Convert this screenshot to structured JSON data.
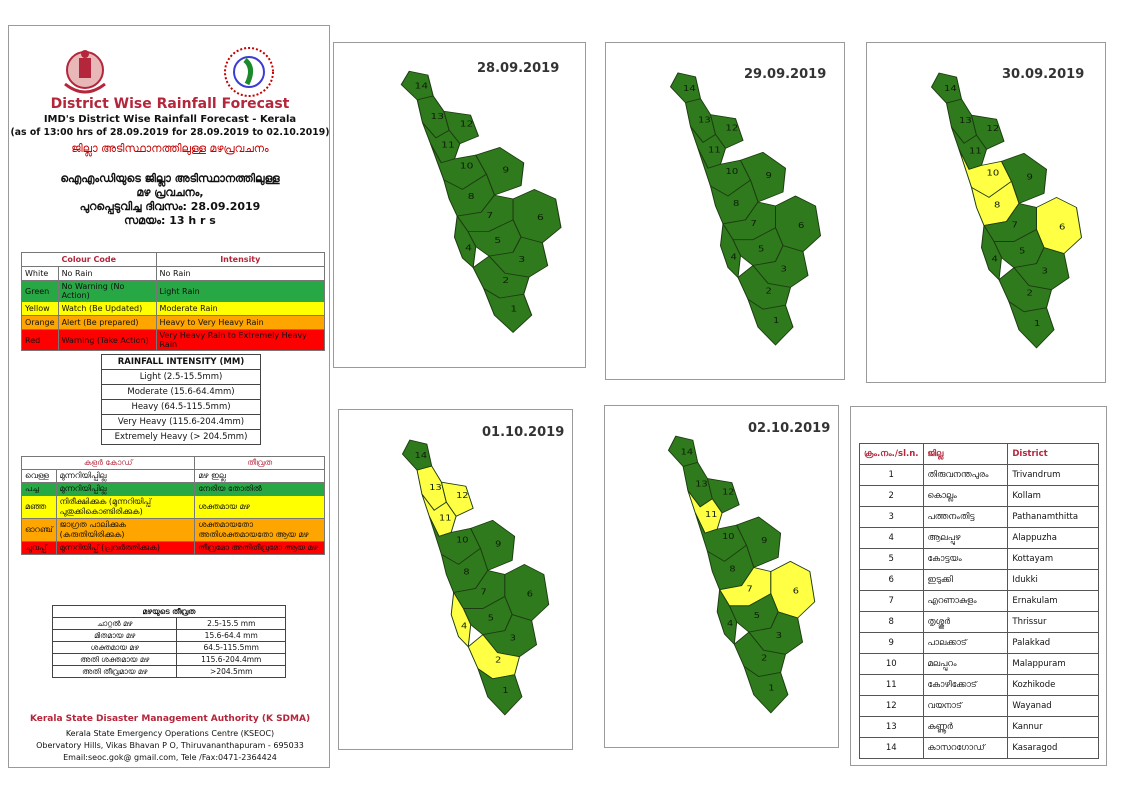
{
  "header": {
    "title": "District Wise Rainfall Forecast",
    "subtitle": "IMD's District Wise Rainfall Forecast - Kerala",
    "as_of": "(as of 13:00 hrs of 28.09.2019  for 28.09.2019  to 02.10.2019)",
    "ml_title": "ജില്ലാ അടിസ്ഥാനത്തിലുള്ള മഴപ്രവചനം",
    "ml_line1": "ഐഎംഡിയുടെ ജില്ലാ  അടിസ്ഥാനത്തിലുള്ള",
    "ml_line2": "മഴ പ്രവചനം,",
    "ml_line3": "പുറപ്പെടുവിച്ച  ദിവസം: 28.09.2019",
    "ml_line4": "സമയം: 13 h r s"
  },
  "colour_code": {
    "header_code": "Colour Code",
    "header_intensity": "Intensity",
    "rows": [
      {
        "name": "White",
        "code": "No Rain",
        "intensity": "No Rain",
        "color": "#ffffff"
      },
      {
        "name": "Green",
        "code": "No Warning (No Action)",
        "intensity": "Light Rain",
        "color": "#28a745"
      },
      {
        "name": "Yellow",
        "code": "Watch (Be Updated)",
        "intensity": "Moderate Rain",
        "color": "#ffff00"
      },
      {
        "name": "Orange",
        "code": "Alert (Be prepared)",
        "intensity": "Heavy to Very Heavy Rain",
        "color": "#ffa500"
      },
      {
        "name": "Red",
        "code": "Warning (Take Action)",
        "intensity": "Very Heavy Rain to Extremely Heavy Rain",
        "color": "#ff0000"
      }
    ]
  },
  "rainfall_intensity": {
    "header": "RAINFALL INTENSITY (MM)",
    "rows": [
      "Light (2.5-15.5mm)",
      "Moderate (15.6-64.4mm)",
      "Heavy (64.5-115.5mm)",
      "Very Heavy (115.6-204.4mm)",
      "Extremely Heavy (> 204.5mm)"
    ]
  },
  "ml_colour_code": {
    "header_code": "കളർ കോഡ്",
    "header_intensity": "തീവ്രത",
    "rows": [
      {
        "name": "വെള്ള",
        "code": "മുന്നറിയിപ്പില്ല",
        "intensity": "മഴ ഇല്ല",
        "color": "#ffffff"
      },
      {
        "name": "പച്ച",
        "code": "മുന്നറിയിപ്പില്ല",
        "intensity": "നേരിയ തോതിൽ",
        "color": "#28a745"
      },
      {
        "name": "മഞ്ഞ",
        "code": "നിരീക്ഷിക്കുക (മുന്നറിയിപ്പ് പുതുക്കികൊണ്ടിരിക്കുക)",
        "intensity": "ശക്തമായ മഴ",
        "color": "#ffff00"
      },
      {
        "name": "ഓറഞ്ച്",
        "code": "ജാഗ്രത പാലിക്കുക (കരുതിയിരിക്കുക)",
        "intensity": "ശക്തമായതോ അതിശക്തമായതോ ആയ മഴ",
        "color": "#ffa500"
      },
      {
        "name": "ചുവപ്പ്",
        "code": "മുന്നറിയിപ്പ് (പ്രവർത്തിക്കുക)",
        "intensity": "തീവ്രമോ അതിതീവ്രമോ ആയ മഴ",
        "color": "#ff0000"
      }
    ]
  },
  "ml_intensity": {
    "header": "മഴയുടെ തീവ്രത",
    "rows": [
      {
        "label": "ചാറ്റൽ മഴ",
        "range": "2.5-15.5 mm"
      },
      {
        "label": "മിതമായ മഴ",
        "range": "15.6-64.4 mm"
      },
      {
        "label": "ശക്തമായ മഴ",
        "range": "64.5-115.5mm"
      },
      {
        "label": "അതി ശക്തമായ മഴ",
        "range": "115.6-204.4mm"
      },
      {
        "label": "അതി തീവ്രമായ മഴ",
        "range": ">204.5mm"
      }
    ]
  },
  "footer": {
    "org": "Kerala State Disaster Management Authority (K SDMA)",
    "line1": "Kerala State Emergency Operations Centre (KSEOC)",
    "line2": "Obervatory Hills, Vikas Bhavan P O, Thiruvananthapuram - 695033",
    "line3": "Email:seoc.gok@ gmail.com, Tele /Fax:0471-2364424"
  },
  "maps": [
    {
      "date": "28.09.2019",
      "yellow": []
    },
    {
      "date": "29.09.2019",
      "yellow": []
    },
    {
      "date": "30.09.2019",
      "yellow": [
        6,
        8,
        10
      ]
    },
    {
      "date": "01.10.2019",
      "yellow": [
        2,
        4,
        11,
        12,
        13
      ]
    },
    {
      "date": "02.10.2019",
      "yellow": [
        6,
        7,
        11
      ]
    }
  ],
  "colors": {
    "green": "#2f7a1c",
    "yellow": "#ffff44",
    "outline": "#1d3b12"
  },
  "districts": {
    "headers": [
      "ക്രം.നം./sl.n.",
      "ജില്ല",
      "District"
    ],
    "rows": [
      {
        "no": "1",
        "ml": "തിരുവനന്തപുരം",
        "en": "Trivandrum"
      },
      {
        "no": "2",
        "ml": "കൊല്ലം",
        "en": "Kollam"
      },
      {
        "no": "3",
        "ml": "പത്തനംതിട്ട",
        "en": "Pathanamthitta"
      },
      {
        "no": "4",
        "ml": "ആലപ്പുഴ",
        "en": "Alappuzha"
      },
      {
        "no": "5",
        "ml": "കോട്ടയം",
        "en": "Kottayam"
      },
      {
        "no": "6",
        "ml": "ഇടുക്കി",
        "en": "Idukki"
      },
      {
        "no": "7",
        "ml": "എറണാകുളം",
        "en": "Ernakulam"
      },
      {
        "no": "8",
        "ml": "തൃശ്ശൂർ",
        "en": "Thrissur"
      },
      {
        "no": "9",
        "ml": "പാലക്കാട്",
        "en": "Palakkad"
      },
      {
        "no": "10",
        "ml": "മലപ്പുറം",
        "en": "Malappuram"
      },
      {
        "no": "11",
        "ml": "കോഴിക്കോട്",
        "en": "Kozhikode"
      },
      {
        "no": "12",
        "ml": "വയനാട്",
        "en": "Wayanad"
      },
      {
        "no": "13",
        "ml": "കണ്ണൂർ",
        "en": "Kannur"
      },
      {
        "no": "14",
        "ml": "കാസറഗോഡ്",
        "en": "Kasaragod"
      }
    ]
  }
}
